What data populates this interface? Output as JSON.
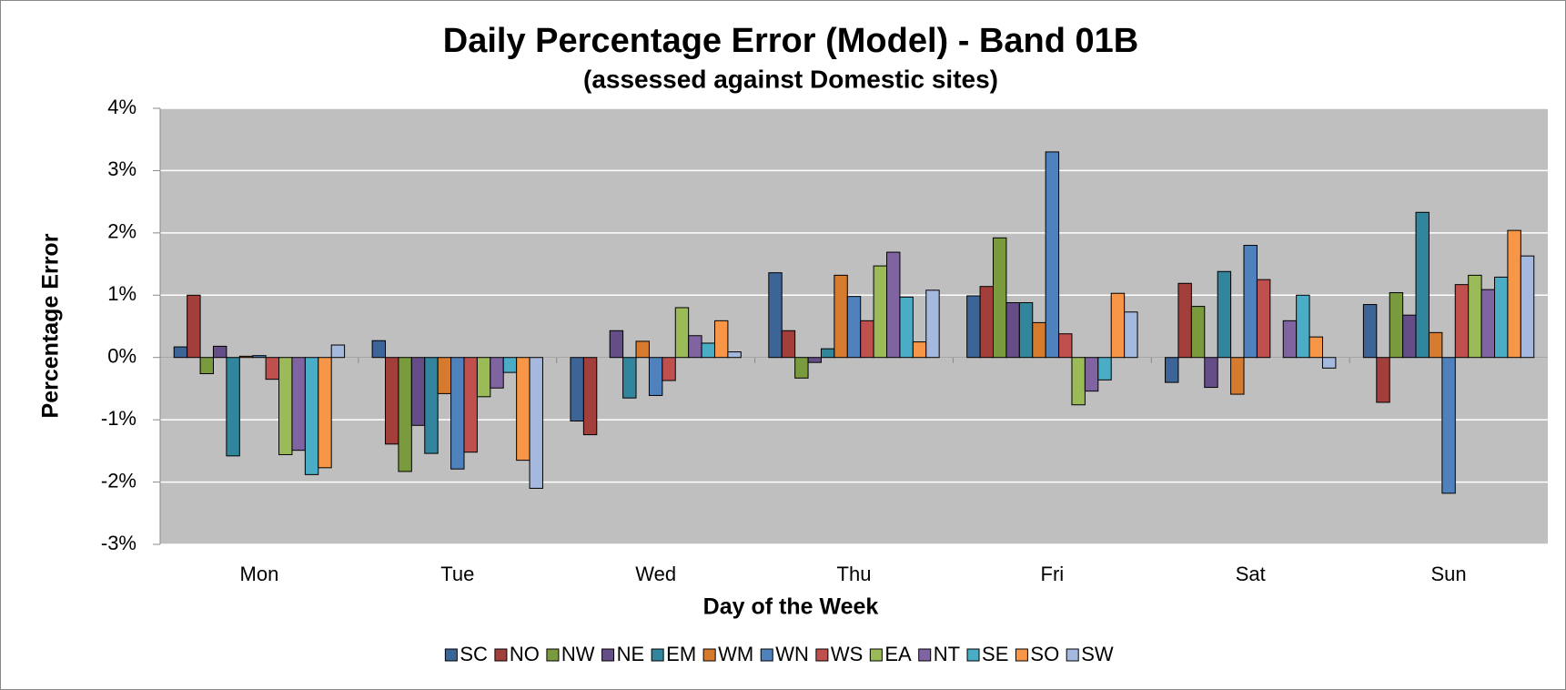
{
  "chart_data": {
    "type": "bar",
    "title": "Daily Percentage Error (Model) - Band 01B",
    "subtitle": "(assessed against Domestic sites)",
    "x_label": "Day of the Week",
    "y_label": "Percentage Error",
    "categories": [
      "Mon",
      "Tue",
      "Wed",
      "Thu",
      "Fri",
      "Sat",
      "Sun"
    ],
    "ylim": [
      -3,
      4
    ],
    "yticks": [
      {
        "value": -3,
        "label": "-3%"
      },
      {
        "value": -2,
        "label": "-2%"
      },
      {
        "value": -1,
        "label": "-1%"
      },
      {
        "value": 0,
        "label": "0%"
      },
      {
        "value": 1,
        "label": "1%"
      },
      {
        "value": 2,
        "label": "2%"
      },
      {
        "value": 3,
        "label": "3%"
      },
      {
        "value": 4,
        "label": "4%"
      }
    ],
    "grid": true,
    "legend": "bottom",
    "series": [
      {
        "name": "SC",
        "color": "#3c6496",
        "values": [
          0.17,
          0.27,
          -1.02,
          1.36,
          0.99,
          -0.4,
          0.85
        ]
      },
      {
        "name": "NO",
        "color": "#a33f3b",
        "values": [
          1.0,
          -1.39,
          -1.24,
          0.43,
          1.14,
          1.19,
          -0.72
        ]
      },
      {
        "name": "NW",
        "color": "#7a9a3e",
        "values": [
          -0.26,
          -1.83,
          0.0,
          -0.33,
          1.92,
          0.82,
          1.04
        ]
      },
      {
        "name": "NE",
        "color": "#654d87",
        "values": [
          0.18,
          -1.09,
          0.43,
          -0.08,
          0.88,
          -0.48,
          0.68
        ]
      },
      {
        "name": "EM",
        "color": "#31859c",
        "values": [
          -1.58,
          -1.54,
          -0.65,
          0.14,
          0.88,
          1.38,
          2.33
        ]
      },
      {
        "name": "WM",
        "color": "#d67b2e",
        "values": [
          0.02,
          -0.58,
          0.26,
          1.32,
          0.56,
          -0.59,
          0.4
        ]
      },
      {
        "name": "WN",
        "color": "#4f81bd",
        "values": [
          0.03,
          -1.79,
          -0.61,
          0.98,
          3.3,
          1.8,
          -2.18
        ]
      },
      {
        "name": "WS",
        "color": "#c0504d",
        "values": [
          -0.35,
          -1.52,
          -0.37,
          0.59,
          0.38,
          1.25,
          1.17
        ]
      },
      {
        "name": "EA",
        "color": "#9bbb59",
        "values": [
          -1.56,
          -0.63,
          0.8,
          1.47,
          -0.76,
          0.0,
          1.32
        ]
      },
      {
        "name": "NT",
        "color": "#8064a2",
        "values": [
          -1.49,
          -0.49,
          0.35,
          1.69,
          -0.54,
          0.59,
          1.09
        ]
      },
      {
        "name": "SE",
        "color": "#4bacc6",
        "values": [
          -1.88,
          -0.24,
          0.23,
          0.97,
          -0.36,
          1.0,
          1.29
        ]
      },
      {
        "name": "SO",
        "color": "#f79646",
        "values": [
          -1.77,
          -1.65,
          0.59,
          0.25,
          1.03,
          0.33,
          2.04
        ]
      },
      {
        "name": "SW",
        "color": "#a5b8dd",
        "values": [
          0.2,
          -2.1,
          0.09,
          1.08,
          0.73,
          -0.17,
          1.63
        ]
      }
    ]
  }
}
